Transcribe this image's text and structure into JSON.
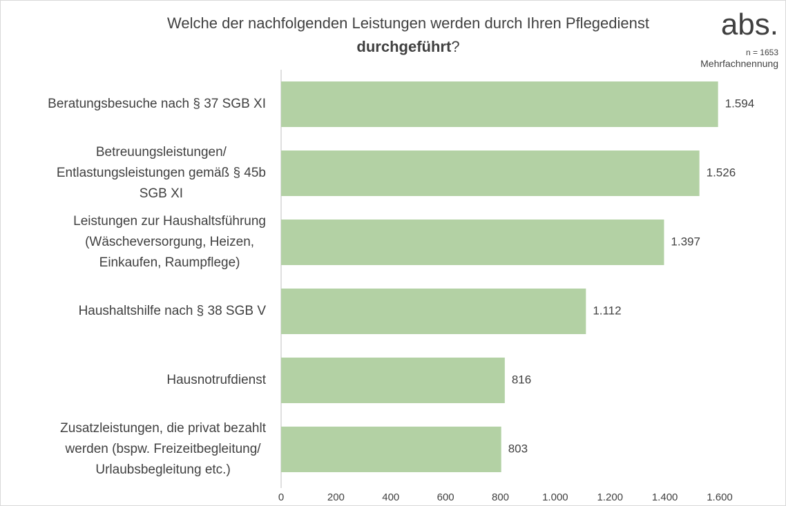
{
  "chart_data": {
    "type": "barh",
    "title": [
      "Welche der nachfolgenden Leistungen werden durch Ihren Pflegedienst",
      "durchgeführt",
      "?"
    ],
    "unit": "abs.",
    "sample_size": "n = 1653",
    "note": "Mehrfachnennung",
    "categories": [
      "Beratungsbesuche nach § 37 SGB XI",
      "Betreuungsleistungen/\nEntlastungsleistungen gemäß § 45b\nSGB XI",
      "Leistungen zur Haushaltsführung\n(Wäscheversorgung, Heizen,\nEinkaufen, Raumpflege)",
      "Haushaltshilfe nach § 38 SGB V",
      "Hausnotrufdienst",
      "Zusatzleistungen, die privat bezahlt\nwerden (bspw. Freizeitbegleitung/\nUrlaubsbegleitung etc.)"
    ],
    "values": [
      1594,
      1526,
      1397,
      1112,
      816,
      803
    ],
    "value_labels": [
      "1.594",
      "1.526",
      "1.397",
      "1.112",
      "816",
      "803"
    ],
    "color": "#b3d1a4",
    "xlim": [
      0,
      1600
    ],
    "xticks": [
      0,
      200,
      400,
      600,
      800,
      {
        "value": 1000,
        "label": "1.000"
      },
      {
        "value": 1200,
        "label": "1.200"
      },
      {
        "value": 1400,
        "label": "1.400"
      },
      {
        "value": 1600,
        "label": "1.600"
      }
    ],
    "grid": false
  }
}
